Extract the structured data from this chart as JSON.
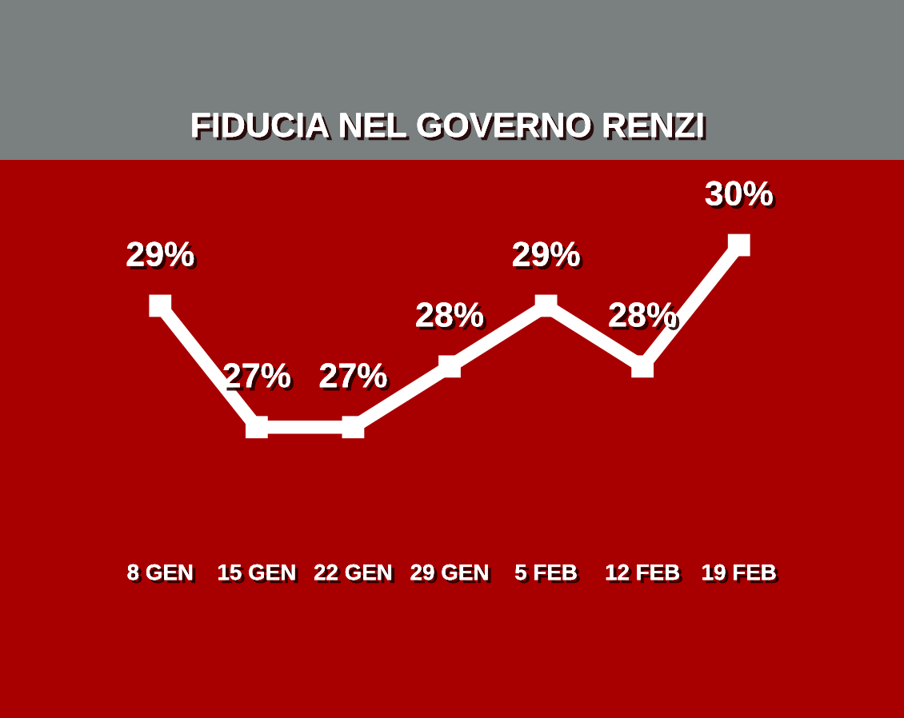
{
  "chart_data": {
    "type": "line",
    "title": "FIDUCIA NEL GOVERNO RENZI",
    "categories": [
      "8 GEN",
      "15 GEN",
      "22 GEN",
      "29 GEN",
      "5 FEB",
      "12 FEB",
      "19 FEB"
    ],
    "series": [
      {
        "color": "#ffffff",
        "values": [
          29,
          27,
          27,
          28,
          29,
          28,
          30
        ],
        "value_labels": [
          "29%",
          "27%",
          "27%",
          "28%",
          "29%",
          "28%",
          "30%"
        ]
      }
    ],
    "marker": "square",
    "line_style": "solid",
    "tick_labels": "x"
  }
}
